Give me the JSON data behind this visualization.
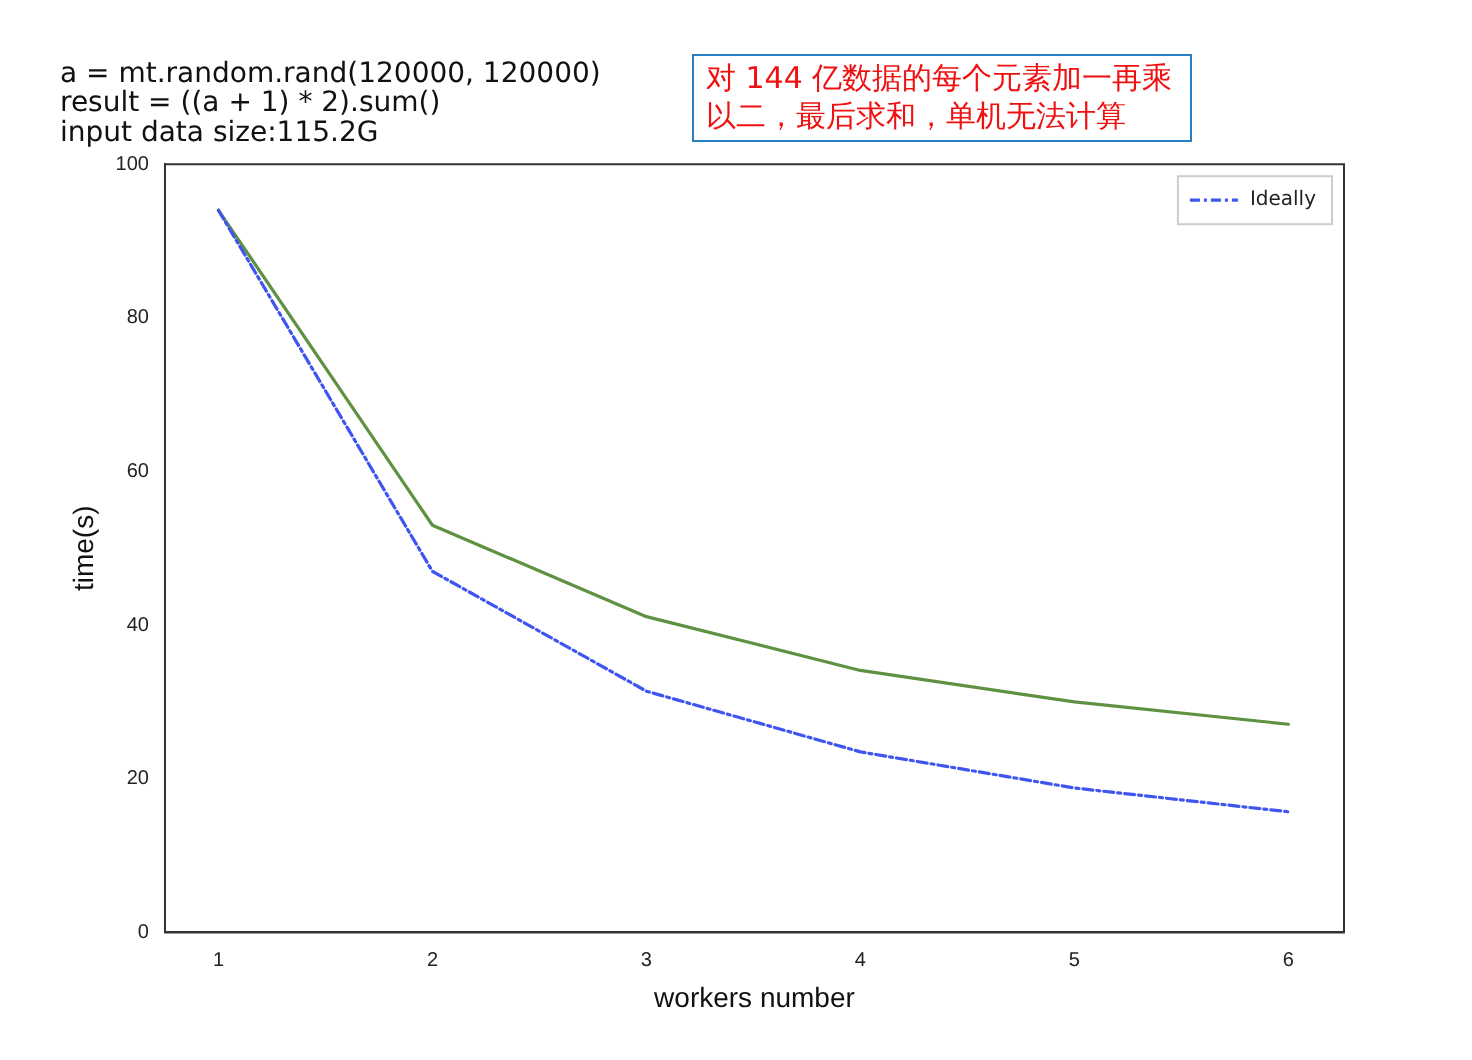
{
  "chart_data": {
    "type": "line",
    "title": "a = mt.random.rand(120000, 120000)\nresult = ((a + 1) * 2).sum()\ninput data size:115.2G",
    "annotations": [
      "对 144 亿数据的每个元素加一再乘以二，最后求和，单机无法计算"
    ],
    "xlabel": "workers number",
    "ylabel": "time(s)",
    "x": [
      1,
      2,
      3,
      4,
      5,
      6
    ],
    "series": [
      {
        "color": "#5f9142",
        "values": [
          94,
          53,
          41.1,
          34.1,
          30,
          27.1
        ],
        "line_style": "solid"
      },
      {
        "name": "Ideally",
        "color": "#3f55f0",
        "values": [
          94,
          47,
          31.4,
          23.5,
          18.8,
          15.7
        ],
        "line_style": "dashed"
      }
    ],
    "xlim": [
      0.75,
      6.26
    ],
    "xticks": [
      1,
      2,
      3,
      4,
      5,
      6
    ],
    "ylim": [
      0,
      100
    ],
    "yticks": [
      0,
      20,
      40,
      60,
      80,
      100
    ],
    "grid": false,
    "legend": "top right",
    "marker": "none"
  }
}
